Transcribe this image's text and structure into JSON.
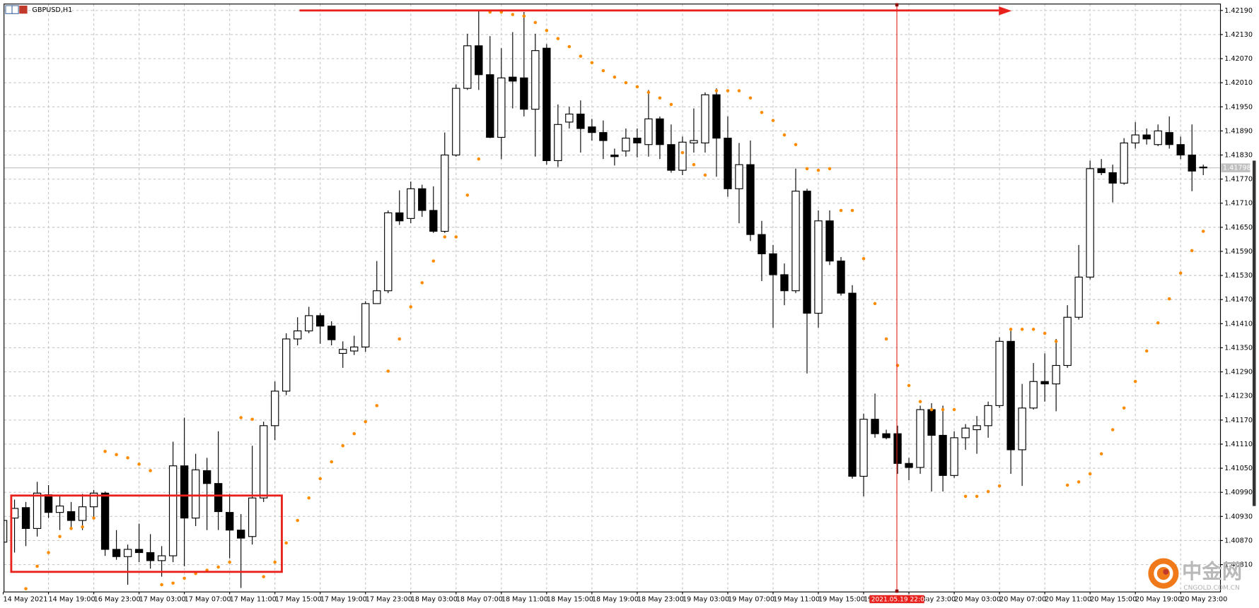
{
  "chart_data": {
    "type": "candlestick",
    "title": "GBPUSD,H1",
    "categories": [
      "14 May 2021",
      null,
      null,
      null,
      "14 May 19:00",
      null,
      null,
      null,
      "16 May 23:00",
      null,
      null,
      null,
      "17 May 03:00",
      null,
      null,
      null,
      "17 May 07:00",
      null,
      null,
      null,
      "17 May 11:00",
      null,
      null,
      null,
      "17 May 15:00",
      null,
      null,
      null,
      "17 May 19:00",
      null,
      null,
      null,
      "17 May 23:00",
      null,
      null,
      null,
      "18 May 03:00",
      null,
      null,
      null,
      "18 May 07:00",
      null,
      null,
      null,
      "18 May 11:00",
      null,
      null,
      null,
      "18 May 15:00",
      null,
      null,
      null,
      "18 May 19:00",
      null,
      null,
      null,
      "18 May 23:00",
      null,
      null,
      null,
      "19 May 03:00",
      null,
      null,
      null,
      "19 May 07:00",
      null,
      null,
      null,
      "19 May 11:00",
      null,
      null,
      null,
      "19 May 15:00",
      null,
      null,
      null,
      "19 May 19:00",
      null,
      null,
      null,
      "19 May 23:00",
      null,
      null,
      null,
      "20 May 03:00",
      null,
      null,
      null,
      "20 May 07:00",
      null,
      null,
      null,
      "20 May 11:00",
      null,
      null,
      null,
      "20 May 15:00",
      null,
      null,
      null,
      "20 May 19:00",
      null,
      null,
      null,
      "20 May 23:00",
      null,
      null
    ],
    "open": [
      1.40866,
      1.40926,
      1.40952,
      1.409,
      1.40984,
      1.4094,
      1.40942,
      1.4092,
      1.40954,
      1.40988,
      1.40848,
      1.4083,
      1.40848,
      1.4084,
      1.4082,
      1.40832,
      1.41056,
      1.40926,
      1.41044,
      1.41012,
      1.4094,
      1.40896,
      1.4088,
      1.40976,
      1.41156,
      1.41242,
      1.41372,
      1.41392,
      1.4143,
      1.41404,
      1.41336,
      1.41342,
      1.41352,
      1.4146,
      1.41492,
      1.41686,
      1.41672,
      1.41746,
      1.41692,
      1.4164,
      1.4183,
      1.41996,
      1.42102,
      1.4203,
      1.41874,
      1.42024,
      1.42022,
      1.41944,
      1.42096,
      1.41816,
      1.41912,
      1.41932,
      1.419,
      1.41886,
      1.4183,
      1.4184,
      1.41872,
      1.41856,
      1.4192,
      1.41856,
      1.41792,
      1.4186,
      1.4186,
      1.4198,
      1.41872,
      1.41746,
      1.41806,
      1.41632,
      1.41584,
      1.41532,
      1.41492,
      1.4174,
      1.41436,
      1.41666,
      1.41566,
      1.41486,
      1.4103,
      1.41172,
      1.41136,
      1.41136,
      1.41062,
      1.41052,
      1.41196,
      1.41132,
      1.41032,
      1.41126,
      1.41146,
      1.41156,
      1.41206,
      1.41366,
      1.41096,
      1.412,
      1.41266,
      1.4126,
      1.41306,
      1.41426,
      1.41526,
      1.41796,
      1.41786,
      1.4176,
      1.4186,
      1.4188,
      1.41856,
      1.41886,
      1.41856,
      1.4183,
      1.418
    ],
    "high": [
      1.40932,
      1.40972,
      1.40966,
      1.41016,
      1.41008,
      1.4098,
      1.40966,
      1.40986,
      1.40996,
      1.40992,
      1.40896,
      1.4086,
      1.40912,
      1.40886,
      1.40856,
      1.41116,
      1.41176,
      1.41086,
      1.41076,
      1.41142,
      1.40986,
      1.40936,
      1.41106,
      1.41166,
      1.41266,
      1.41386,
      1.41426,
      1.41452,
      1.41436,
      1.41416,
      1.41366,
      1.4138,
      1.41466,
      1.41566,
      1.41692,
      1.41742,
      1.41764,
      1.41756,
      1.41752,
      1.41886,
      1.42006,
      1.42132,
      1.42192,
      1.42126,
      1.42096,
      1.42136,
      1.42186,
      1.42132,
      1.42106,
      1.41956,
      1.4195,
      1.41966,
      1.4192,
      1.41916,
      1.41846,
      1.41896,
      1.41896,
      1.41992,
      1.41926,
      1.41906,
      1.41876,
      1.41946,
      1.41986,
      1.41996,
      1.41926,
      1.4186,
      1.41866,
      1.41666,
      1.41606,
      1.4156,
      1.41796,
      1.41746,
      1.41692,
      1.41692,
      1.41576,
      1.41506,
      1.41186,
      1.41236,
      1.41146,
      1.41156,
      1.41076,
      1.41206,
      1.41212,
      1.41206,
      1.41142,
      1.4116,
      1.4118,
      1.41216,
      1.41376,
      1.41396,
      1.4126,
      1.41312,
      1.41336,
      1.41372,
      1.41456,
      1.41606,
      1.41816,
      1.4182,
      1.41806,
      1.41872,
      1.41912,
      1.41896,
      1.41906,
      1.41926,
      1.41876,
      1.41906,
      1.41806
    ],
    "low": [
      1.40836,
      1.4084,
      1.40856,
      1.4088,
      1.40926,
      1.40896,
      1.40896,
      1.40896,
      1.40926,
      1.40832,
      1.40822,
      1.4076,
      1.40816,
      1.408,
      1.4078,
      1.40816,
      1.40806,
      1.40906,
      1.40896,
      1.40896,
      1.40826,
      1.40752,
      1.4086,
      1.40966,
      1.4112,
      1.41232,
      1.41356,
      1.41386,
      1.4136,
      1.41356,
      1.413,
      1.41332,
      1.4134,
      1.4146,
      1.41486,
      1.41656,
      1.4166,
      1.41676,
      1.41636,
      1.41636,
      1.41826,
      1.41992,
      1.41992,
      1.41872,
      1.4182,
      1.41946,
      1.41926,
      1.41826,
      1.41806,
      1.418,
      1.41896,
      1.41836,
      1.41866,
      1.4182,
      1.41804,
      1.41826,
      1.41824,
      1.41826,
      1.4182,
      1.41786,
      1.4178,
      1.41836,
      1.41836,
      1.41776,
      1.41726,
      1.4166,
      1.41616,
      1.41516,
      1.414,
      1.41456,
      1.41486,
      1.41286,
      1.414,
      1.41556,
      1.4148,
      1.41024,
      1.4098,
      1.41126,
      1.41122,
      1.41036,
      1.4102,
      1.41036,
      1.40992,
      1.40992,
      1.41026,
      1.41096,
      1.41086,
      1.41126,
      1.412,
      1.41036,
      1.41006,
      1.41196,
      1.41216,
      1.41192,
      1.413,
      1.4142,
      1.4152,
      1.4178,
      1.41712,
      1.41756,
      1.41846,
      1.41856,
      1.41852,
      1.41846,
      1.4182,
      1.4174,
      1.4178
    ],
    "close": [
      1.4092,
      1.4095,
      1.409,
      1.40988,
      1.4094,
      1.40956,
      1.4092,
      1.40954,
      1.40988,
      1.40848,
      1.4083,
      1.40848,
      1.4084,
      1.4082,
      1.40832,
      1.41056,
      1.40926,
      1.41046,
      1.41012,
      1.40942,
      1.40896,
      1.40876,
      1.40976,
      1.41156,
      1.41242,
      1.41372,
      1.41392,
      1.4143,
      1.41404,
      1.4137,
      1.41346,
      1.41352,
      1.4146,
      1.41492,
      1.41686,
      1.41666,
      1.41746,
      1.41692,
      1.4164,
      1.4183,
      1.41996,
      1.42102,
      1.4203,
      1.41874,
      1.42022,
      1.42014,
      1.41944,
      1.4209,
      1.41816,
      1.41906,
      1.41932,
      1.41896,
      1.41886,
      1.41866,
      1.41826,
      1.41872,
      1.4186,
      1.4192,
      1.41856,
      1.41792,
      1.41862,
      1.41866,
      1.4198,
      1.41872,
      1.41746,
      1.41806,
      1.41632,
      1.41584,
      1.41532,
      1.41492,
      1.4174,
      1.41436,
      1.41666,
      1.41566,
      1.41486,
      1.4103,
      1.41172,
      1.41136,
      1.41126,
      1.41062,
      1.41052,
      1.41196,
      1.41132,
      1.41032,
      1.41126,
      1.4115,
      1.41156,
      1.41206,
      1.41366,
      1.41096,
      1.412,
      1.41266,
      1.4126,
      1.41306,
      1.41426,
      1.41526,
      1.41796,
      1.41786,
      1.4176,
      1.4186,
      1.4188,
      1.4187,
      1.4189,
      1.41856,
      1.4183,
      1.4179,
      1.41798
    ],
    "sar": [
      null,
      null,
      1.4075,
      1.40806,
      1.4084,
      1.4088,
      1.409,
      1.40904,
      1.40926,
      1.41092,
      1.41084,
      1.41076,
      1.4106,
      1.41044,
      1.4076,
      1.40764,
      1.40776,
      1.40788,
      1.40796,
      1.40804,
      1.40816,
      1.41176,
      1.41172,
      1.4078,
      1.40816,
      1.40864,
      1.4092,
      1.40976,
      1.41024,
      1.41066,
      1.41106,
      1.41136,
      1.41166,
      1.41206,
      1.41292,
      1.41372,
      1.41452,
      1.41512,
      1.41566,
      1.41626,
      1.41626,
      1.4173,
      1.4182,
      1.42186,
      1.42186,
      1.4218,
      1.42176,
      1.4216,
      1.4214,
      1.4212,
      1.421,
      1.42076,
      1.4206,
      1.4204,
      1.42024,
      1.4201,
      1.42,
      1.41986,
      1.41972,
      1.41956,
      1.41836,
      1.41806,
      1.4178,
      1.4199,
      1.4199,
      1.4199,
      1.41972,
      1.41936,
      1.41916,
      1.4188,
      1.41856,
      1.41796,
      1.41792,
      1.41796,
      1.41692,
      1.41692,
      1.41572,
      1.4146,
      1.41372,
      1.41306,
      1.41256,
      1.41216,
      1.41196,
      1.41196,
      1.41196,
      1.4098,
      1.4098,
      1.40992,
      1.41006,
      1.41396,
      1.41396,
      1.41396,
      1.41386,
      1.41366,
      1.41008,
      1.41016,
      1.41036,
      1.41086,
      1.41146,
      1.412,
      1.41266,
      1.41342,
      1.41412,
      1.41472,
      1.41536,
      1.41592,
      1.4164
    ],
    "up_color": "#ffffff",
    "down_color": "#000000",
    "sar_color": "#ff8c00",
    "last_price": 1.41798,
    "crosshair_label": "2021.05.19 22:00",
    "ylim": [
      1.40742,
      1.42206
    ],
    "yticks": [
      {
        "value": 1.4219,
        "label": "1.42190"
      },
      {
        "value": 1.4213,
        "label": "1.42130"
      },
      {
        "value": 1.4207,
        "label": "1.42070"
      },
      {
        "value": 1.4201,
        "label": "1.42010"
      },
      {
        "value": 1.4195,
        "label": "1.41950"
      },
      {
        "value": 1.4189,
        "label": "1.41890"
      },
      {
        "value": 1.4183,
        "label": "1.41830"
      },
      {
        "value": 1.4177,
        "label": "1.41770"
      },
      {
        "value": 1.4171,
        "label": "1.41710"
      },
      {
        "value": 1.4165,
        "label": "1.41650"
      },
      {
        "value": 1.4159,
        "label": "1.41590"
      },
      {
        "value": 1.4153,
        "label": "1.41530"
      },
      {
        "value": 1.4147,
        "label": "1.41470"
      },
      {
        "value": 1.4141,
        "label": "1.41410"
      },
      {
        "value": 1.4135,
        "label": "1.41350"
      },
      {
        "value": 1.4129,
        "label": "1.41290"
      },
      {
        "value": 1.4123,
        "label": "1.41230"
      },
      {
        "value": 1.4117,
        "label": "1.41170"
      },
      {
        "value": 1.4111,
        "label": "1.41110"
      },
      {
        "value": 1.4105,
        "label": "1.41050"
      },
      {
        "value": 1.4099,
        "label": "1.40990"
      },
      {
        "value": 1.4093,
        "label": "1.40930"
      },
      {
        "value": 1.4087,
        "label": "1.40870"
      },
      {
        "value": 1.4081,
        "label": "1.40810"
      }
    ],
    "grid": true,
    "watermark": {
      "name": "中金网",
      "site": "CNGOLD.COM.CN"
    }
  }
}
